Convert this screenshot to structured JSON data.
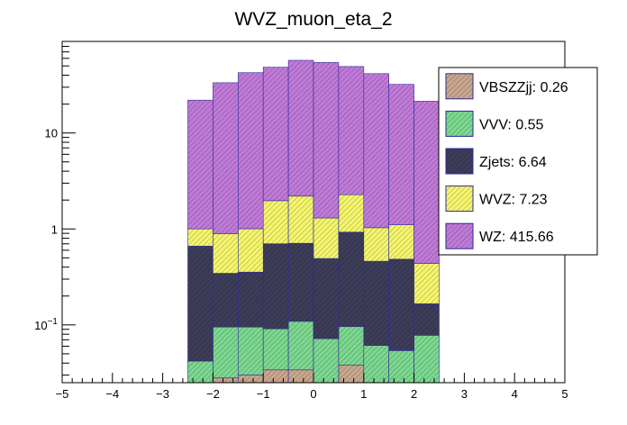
{
  "chart_data": {
    "type": "bar",
    "stacked": true,
    "title": "WVZ_muon_eta_2",
    "xlabel": "",
    "ylabel": "",
    "xlim": [
      -5,
      5
    ],
    "ylim": [
      0.025,
      90
    ],
    "y_scale": "log",
    "grid": false,
    "legend_position": "right",
    "x_ticks": [
      "−5",
      "−4",
      "−3",
      "−2",
      "−1",
      "0",
      "1",
      "2",
      "3",
      "4",
      "5"
    ],
    "y_ticks": [
      {
        "value": 0.1,
        "label": "10−1"
      },
      {
        "value": 1,
        "label": "1"
      },
      {
        "value": 10,
        "label": "10"
      }
    ],
    "x_bin_edges": [
      -2.5,
      -2.0,
      -1.5,
      -1.0,
      -0.5,
      0.0,
      0.5,
      1.0,
      1.5,
      2.0,
      2.5
    ],
    "series": [
      {
        "name": "VBSZZjj",
        "legend": "VBSZZjj: 0.26",
        "color": "#c9a78e",
        "values": [
          0.0,
          0.028,
          0.03,
          0.034,
          0.034,
          0.0,
          0.038,
          0.0,
          0.0,
          0.0
        ]
      },
      {
        "name": "VVV",
        "legend": "VVV: 0.55",
        "color": "#7cd890",
        "values": [
          0.042,
          0.067,
          0.065,
          0.057,
          0.075,
          0.072,
          0.058,
          0.061,
          0.054,
          0.078
        ]
      },
      {
        "name": "Zjets",
        "legend": "Zjets: 6.64",
        "color": "#3d3d5a",
        "values": [
          0.62,
          0.25,
          0.26,
          0.61,
          0.6,
          0.42,
          0.83,
          0.4,
          0.43,
          0.088
        ]
      },
      {
        "name": "WVZ",
        "legend": "WVZ: 7.23",
        "color": "#f5f56e",
        "values": [
          0.34,
          0.55,
          0.65,
          1.27,
          1.49,
          0.81,
          1.35,
          0.57,
          0.62,
          0.27
        ]
      },
      {
        "name": "WZ",
        "legend": "WZ: 415.66",
        "color": "#c07ad8",
        "values": [
          21.0,
          32.5,
          41.5,
          46.5,
          55.0,
          53.0,
          47.0,
          40.5,
          31.0,
          21.0
        ]
      }
    ]
  }
}
